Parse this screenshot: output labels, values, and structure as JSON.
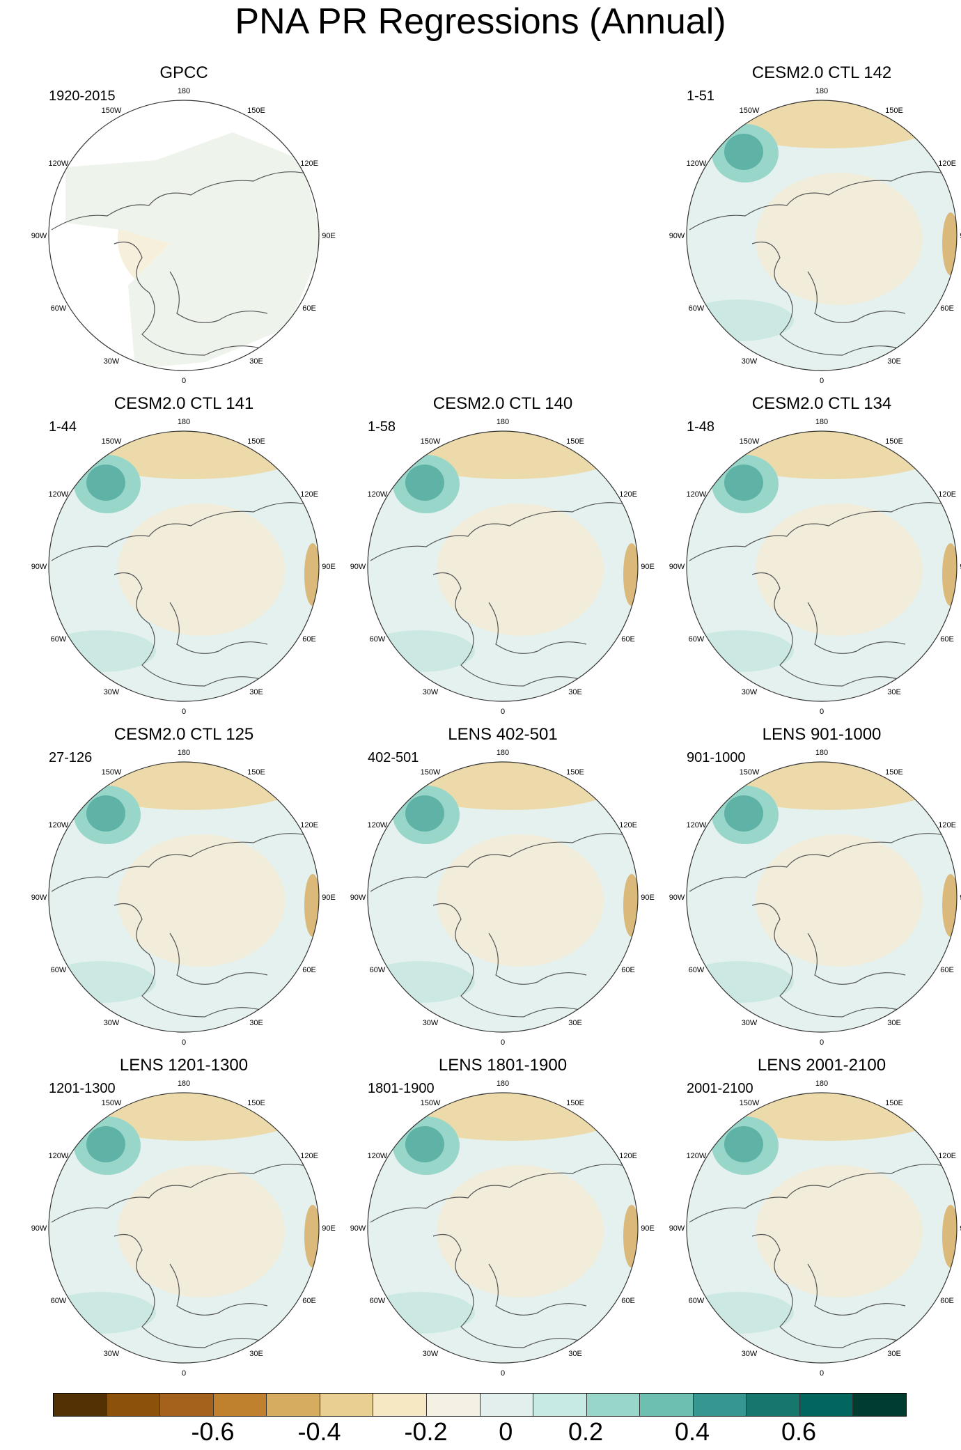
{
  "title": "PNA PR Regressions (Annual)",
  "lon_labels": [
    "180",
    "150E",
    "120E",
    "90E",
    "60E",
    "30E",
    "0",
    "30W",
    "60W",
    "90W",
    "120W",
    "150W"
  ],
  "panels": [
    {
      "title": "GPCC",
      "subtitle": "1920-2015",
      "variant": "obs"
    },
    {
      "title": "CESM2.0 CTL 142",
      "subtitle": "1-51",
      "variant": "model"
    },
    {
      "title": "CESM2.0 CTL 141",
      "subtitle": "1-44",
      "variant": "model"
    },
    {
      "title": "CESM2.0 CTL 140",
      "subtitle": "1-58",
      "variant": "model"
    },
    {
      "title": "CESM2.0 CTL 134",
      "subtitle": "1-48",
      "variant": "model"
    },
    {
      "title": "CESM2.0 CTL 125",
      "subtitle": "27-126",
      "variant": "model"
    },
    {
      "title": "LENS 402-501",
      "subtitle": "402-501",
      "variant": "model"
    },
    {
      "title": "LENS 901-1000",
      "subtitle": "901-1000",
      "variant": "model"
    },
    {
      "title": "LENS 1201-1300",
      "subtitle": "1201-1300",
      "variant": "model"
    },
    {
      "title": "LENS 1801-1900",
      "subtitle": "1801-1900",
      "variant": "model"
    },
    {
      "title": "LENS 2001-2100",
      "subtitle": "2001-2100",
      "variant": "model"
    }
  ],
  "colorbar": {
    "colors": [
      "#543005",
      "#8c510a",
      "#a5621c",
      "#bf812d",
      "#d6ad60",
      "#e9cf91",
      "#f6e8c3",
      "#f5f0e4",
      "#e2efec",
      "#c7eae5",
      "#99d6ca",
      "#6cbfb1",
      "#35978f",
      "#17766e",
      "#01665e",
      "#003c30"
    ],
    "labels": [
      "-0.6",
      "-0.4",
      "-0.2",
      "0",
      "0.2",
      "0.4",
      "0.6"
    ]
  }
}
